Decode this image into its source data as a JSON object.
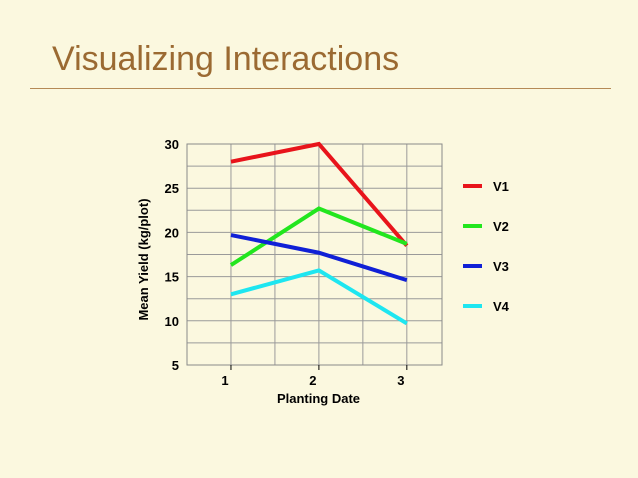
{
  "slide": {
    "title": "Visualizing Interactions"
  },
  "chart_data": {
    "type": "line",
    "title": "",
    "xlabel": "Planting Date",
    "ylabel": "Mean Yield (kg/plot)",
    "x": [
      1,
      2,
      3
    ],
    "x_tick_labels": [
      "1",
      "2",
      "3"
    ],
    "xlim": [
      0.5,
      3.4
    ],
    "ylim": [
      5,
      30
    ],
    "y_ticks": [
      5,
      10,
      15,
      20,
      25,
      30
    ],
    "grid": true,
    "legend_position": "right",
    "series": [
      {
        "name": "V1",
        "color": "#e8141b",
        "values": [
          28,
          30,
          18.5
        ]
      },
      {
        "name": "V2",
        "color": "#22e61e",
        "values": [
          16.3,
          22.7,
          18.7
        ]
      },
      {
        "name": "V3",
        "color": "#1020d6",
        "values": [
          19.7,
          17.7,
          14.6
        ]
      },
      {
        "name": "V4",
        "color": "#1ee6f0",
        "values": [
          13,
          15.7,
          9.7
        ]
      }
    ]
  }
}
